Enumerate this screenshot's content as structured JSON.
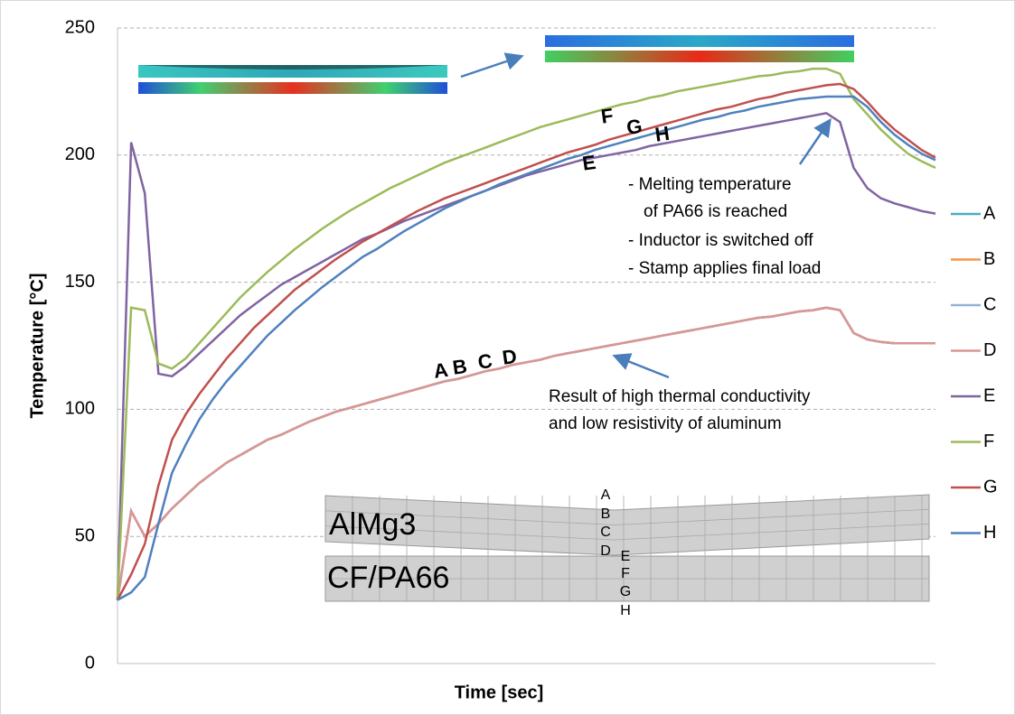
{
  "chart_data": {
    "type": "line",
    "x_label": "Time [sec]",
    "y_label": "Temperature [°C]",
    "ylim": [
      0,
      250
    ],
    "yticks": [
      0,
      50,
      100,
      150,
      200,
      250
    ],
    "grid": true,
    "legend": "right",
    "categories": [
      null,
      null,
      null,
      null,
      null,
      null,
      null,
      null,
      null,
      null,
      null,
      null,
      null,
      null,
      null,
      null,
      null,
      null,
      null,
      null,
      null,
      null,
      null,
      null,
      null,
      null,
      null,
      null,
      null,
      null,
      null,
      null,
      null,
      null,
      null,
      null,
      null,
      null,
      null,
      null,
      null,
      null,
      null,
      null,
      null,
      null,
      null,
      null,
      null,
      null,
      null,
      null,
      null,
      null,
      null,
      null,
      null,
      null,
      null,
      null,
      null
    ],
    "series": [
      {
        "name": "A",
        "color": "#4aacc6",
        "values": [
          25,
          60,
          50,
          55,
          61,
          66,
          71,
          75,
          79,
          82,
          85,
          88,
          90,
          92.5,
          95,
          97,
          99,
          100.5,
          102,
          103.5,
          105,
          106.5,
          108,
          109.5,
          111,
          112,
          113.5,
          115,
          116,
          117.5,
          118.5,
          119.5,
          121,
          122,
          123,
          124,
          125,
          126,
          127,
          128,
          129,
          130,
          131,
          132,
          133,
          134,
          135,
          136,
          136.5,
          137.5,
          138.5,
          139,
          140,
          139,
          130,
          127.5,
          126.5,
          126,
          126,
          126,
          126
        ]
      },
      {
        "name": "B",
        "color": "#f79646",
        "values": [
          25,
          60,
          50,
          55,
          61,
          66,
          71,
          75,
          79,
          82,
          85,
          88,
          90,
          92.5,
          95,
          97,
          99,
          100.5,
          102,
          103.5,
          105,
          106.5,
          108,
          109.5,
          111,
          112,
          113.5,
          115,
          116,
          117.5,
          118.5,
          119.5,
          121,
          122,
          123,
          124,
          125,
          126,
          127,
          128,
          129,
          130,
          131,
          132,
          133,
          134,
          135,
          136,
          136.5,
          137.5,
          138.5,
          139,
          140,
          139,
          130,
          127.5,
          126.5,
          126,
          126,
          126,
          126
        ]
      },
      {
        "name": "C",
        "color": "#95b3d7",
        "values": [
          25,
          60,
          50,
          55,
          61,
          66,
          71,
          75,
          79,
          82,
          85,
          88,
          90,
          92.5,
          95,
          97,
          99,
          100.5,
          102,
          103.5,
          105,
          106.5,
          108,
          109.5,
          111,
          112,
          113.5,
          115,
          116,
          117.5,
          118.5,
          119.5,
          121,
          122,
          123,
          124,
          125,
          126,
          127,
          128,
          129,
          130,
          131,
          132,
          133,
          134,
          135,
          136,
          136.5,
          137.5,
          138.5,
          139,
          140,
          139,
          130,
          127.5,
          126.5,
          126,
          126,
          126,
          126
        ]
      },
      {
        "name": "D",
        "color": "#d99694",
        "values": [
          25,
          60,
          50,
          55,
          61,
          66,
          71,
          75,
          79,
          82,
          85,
          88,
          90,
          92.5,
          95,
          97,
          99,
          100.5,
          102,
          103.5,
          105,
          106.5,
          108,
          109.5,
          111,
          112,
          113.5,
          115,
          116,
          117.5,
          118.5,
          119.5,
          121,
          122,
          123,
          124,
          125,
          126,
          127,
          128,
          129,
          130,
          131,
          132,
          133,
          134,
          135,
          136,
          136.5,
          137.5,
          138.5,
          139,
          140,
          139,
          130,
          127.5,
          126.5,
          126,
          126,
          126,
          126
        ]
      },
      {
        "name": "E",
        "color": "#8064a2",
        "values": [
          25,
          205,
          185,
          114,
          113,
          117,
          122,
          127,
          132,
          137,
          141,
          145,
          149,
          152,
          155,
          158,
          161,
          164,
          167,
          169,
          171.5,
          174,
          176,
          178,
          180,
          182,
          184,
          186,
          188,
          190,
          192,
          193.5,
          195,
          196.5,
          198,
          199,
          200,
          201,
          202,
          203.5,
          204.5,
          205.5,
          206.5,
          207.5,
          208.5,
          209.5,
          210.5,
          211.5,
          212.5,
          213.5,
          214.5,
          215.5,
          216.5,
          213,
          195,
          187,
          183,
          181,
          179.5,
          178,
          177
        ]
      },
      {
        "name": "F",
        "color": "#9bbb59",
        "values": [
          25,
          140,
          139,
          118,
          116,
          120,
          126,
          132,
          138,
          144,
          149,
          154,
          158.5,
          163,
          167,
          171,
          174.5,
          178,
          181,
          184,
          187,
          189.5,
          192,
          194.5,
          197,
          199,
          201,
          203,
          205,
          207,
          209,
          211,
          212.5,
          214,
          215.5,
          217,
          218.5,
          220,
          221,
          222.5,
          223.5,
          225,
          226,
          227,
          228,
          229,
          230,
          231,
          231.5,
          232.5,
          233,
          234,
          234,
          232,
          222,
          216,
          210,
          205,
          200.5,
          197.5,
          195
        ]
      },
      {
        "name": "G",
        "color": "#c0504d",
        "values": [
          25,
          35,
          47,
          70,
          88,
          98,
          106,
          113,
          120,
          126,
          132,
          137,
          142,
          147,
          151,
          155,
          159,
          162.5,
          166,
          169,
          172,
          175,
          178,
          180.5,
          183,
          185,
          187,
          189,
          191,
          193,
          195,
          197,
          199,
          201,
          202.5,
          204,
          206,
          207.5,
          209,
          210.5,
          212,
          213.5,
          215,
          216.5,
          218,
          219,
          220.5,
          222,
          223,
          224.5,
          225.5,
          226.5,
          227.5,
          228,
          226,
          221,
          215,
          210,
          206,
          202,
          199
        ]
      },
      {
        "name": "H",
        "color": "#4f81bd",
        "values": [
          25,
          28,
          34,
          55,
          75,
          86,
          96,
          104,
          111,
          117,
          123,
          129,
          134,
          139,
          143.5,
          148,
          152,
          156,
          160,
          163,
          166.5,
          170,
          173,
          176,
          179,
          181.5,
          184,
          186,
          188.5,
          190.5,
          192.5,
          194.5,
          196.5,
          198.5,
          200,
          202,
          203.5,
          205,
          206.5,
          208,
          209.5,
          211,
          212.5,
          214,
          215,
          216.5,
          217.5,
          219,
          220,
          221,
          222,
          222.5,
          223,
          223,
          223,
          219,
          213,
          208,
          204,
          200.5,
          198
        ]
      }
    ],
    "curve_labels": [
      "A",
      "B",
      "C",
      "D",
      "E",
      "F",
      "G",
      "H"
    ],
    "annotations": [
      "- Melting temperature",
      "of PA66 is reached",
      "- Inductor is switched off",
      "- Stamp applies final load",
      "Result of high thermal conductivity",
      "and low resistivity of aluminum"
    ],
    "diagram": {
      "materials": [
        "AlMg3",
        "CF/PA66"
      ],
      "points": [
        "A",
        "B",
        "C",
        "D",
        "E",
        "F",
        "G",
        "H"
      ]
    }
  }
}
